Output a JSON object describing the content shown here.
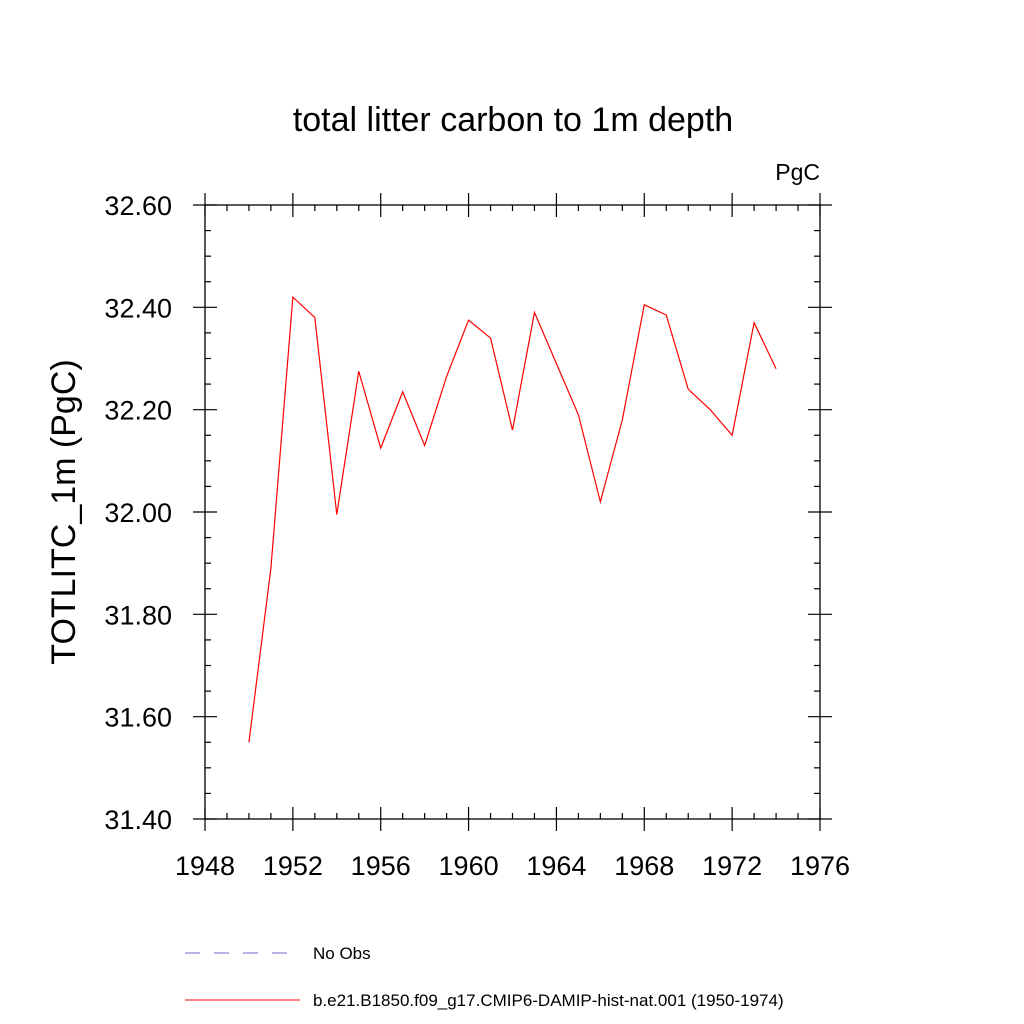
{
  "chart_data": {
    "type": "line",
    "title": "total litter carbon to 1m depth",
    "units_label": "PgC",
    "ylabel": "TOTLITC_1m  (PgC)",
    "xlabel": "",
    "xlim": [
      1948,
      1976
    ],
    "ylim": [
      31.4,
      32.6
    ],
    "x_ticks": [
      1948,
      1952,
      1956,
      1960,
      1964,
      1968,
      1972,
      1976
    ],
    "x_tick_labels": [
      "1948",
      "1952",
      "1956",
      "1960",
      "1964",
      "1968",
      "1972",
      "1976"
    ],
    "y_ticks": [
      31.4,
      31.6,
      31.8,
      32.0,
      32.2,
      32.4,
      32.6
    ],
    "y_tick_labels": [
      "31.40",
      "31.60",
      "31.80",
      "32.00",
      "32.20",
      "32.40",
      "32.60"
    ],
    "x_minor_step": 1,
    "y_minor_step": 0.05,
    "grid": false,
    "series": [
      {
        "name": "b.e21.B1850.f09_g17.CMIP6-DAMIP-hist-nat.001 (1950-1974)",
        "color": "#ff0000",
        "dash": "solid",
        "x": [
          1950,
          1951,
          1952,
          1953,
          1954,
          1955,
          1956,
          1957,
          1958,
          1959,
          1960,
          1961,
          1962,
          1963,
          1964,
          1965,
          1966,
          1967,
          1968,
          1969,
          1970,
          1971,
          1972,
          1973,
          1974
        ],
        "y": [
          31.55,
          31.89,
          32.42,
          32.38,
          31.995,
          32.275,
          32.125,
          32.235,
          32.13,
          32.265,
          32.375,
          32.34,
          32.16,
          32.39,
          32.29,
          32.19,
          32.02,
          32.18,
          32.405,
          32.385,
          32.24,
          32.2,
          32.15,
          32.37,
          32.28
        ]
      }
    ],
    "legend": {
      "placement": "bottom",
      "entries": [
        {
          "label": "No Obs",
          "color": "#6b6bcf",
          "dash": "dashed"
        },
        {
          "label": "b.e21.B1850.f09_g17.CMIP6-DAMIP-hist-nat.001 (1950-1974)",
          "color": "#ff0000",
          "dash": "solid"
        }
      ]
    }
  }
}
